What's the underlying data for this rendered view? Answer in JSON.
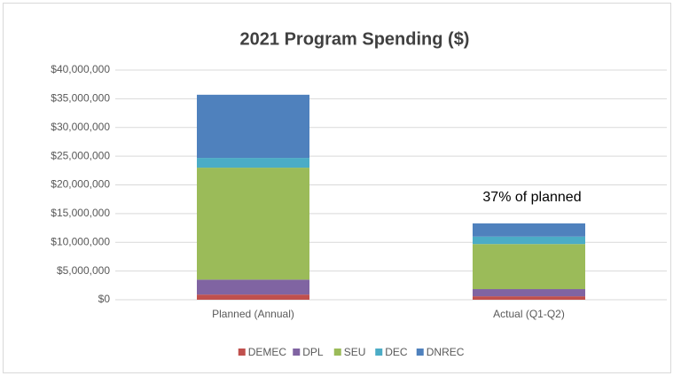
{
  "chart_data": {
    "type": "stacked_bar",
    "title": "2021 Program Spending ($)",
    "categories": [
      "Planned (Annual)",
      "Actual (Q1-Q2)"
    ],
    "series": [
      {
        "name": "DEMEC",
        "color": "#c0504d",
        "values": [
          900000,
          600000
        ]
      },
      {
        "name": "DPL",
        "color": "#8064a2",
        "values": [
          2600000,
          1250000
        ]
      },
      {
        "name": "SEU",
        "color": "#9bbb59",
        "values": [
          19500000,
          7850000
        ]
      },
      {
        "name": "DEC",
        "color": "#4bacc6",
        "values": [
          1700000,
          1300000
        ]
      },
      {
        "name": "DNREC",
        "color": "#4f81bd",
        "values": [
          11000000,
          2300000
        ]
      }
    ],
    "ylim": [
      0,
      40000000
    ],
    "yticks": [
      {
        "value": 0,
        "label": "$0"
      },
      {
        "value": 5000000,
        "label": "$5,000,000"
      },
      {
        "value": 10000000,
        "label": "$10,000,000"
      },
      {
        "value": 15000000,
        "label": "$15,000,000"
      },
      {
        "value": 20000000,
        "label": "$20,000,000"
      },
      {
        "value": 25000000,
        "label": "$25,000,000"
      },
      {
        "value": 30000000,
        "label": "$30,000,000"
      },
      {
        "value": 35000000,
        "label": "$35,000,000"
      },
      {
        "value": 40000000,
        "label": "$40,000,000"
      }
    ],
    "annotation": "37% of planned",
    "grid": true,
    "legend": "bottom"
  }
}
